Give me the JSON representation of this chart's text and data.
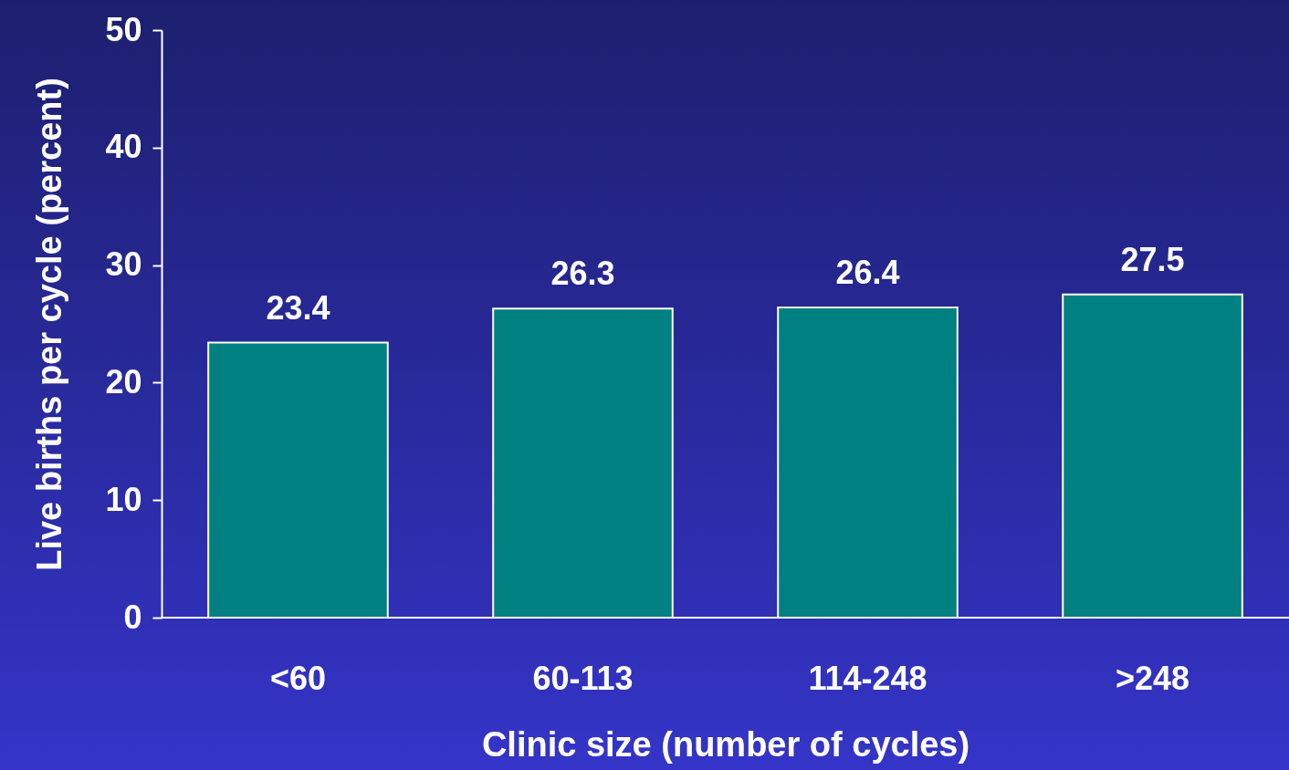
{
  "chart_data": {
    "type": "bar",
    "xlabel": "Clinic size (number of cycles)",
    "ylabel": "Live births per cycle (percent)",
    "categories": [
      "<60",
      "60-113",
      "114-248",
      ">248"
    ],
    "values": [
      23.4,
      26.3,
      26.4,
      27.5
    ],
    "color": "#008080",
    "ylim": [
      0,
      50
    ],
    "yticks": [
      0,
      10,
      20,
      30,
      40,
      50
    ],
    "grid": false,
    "data_labels": true
  }
}
